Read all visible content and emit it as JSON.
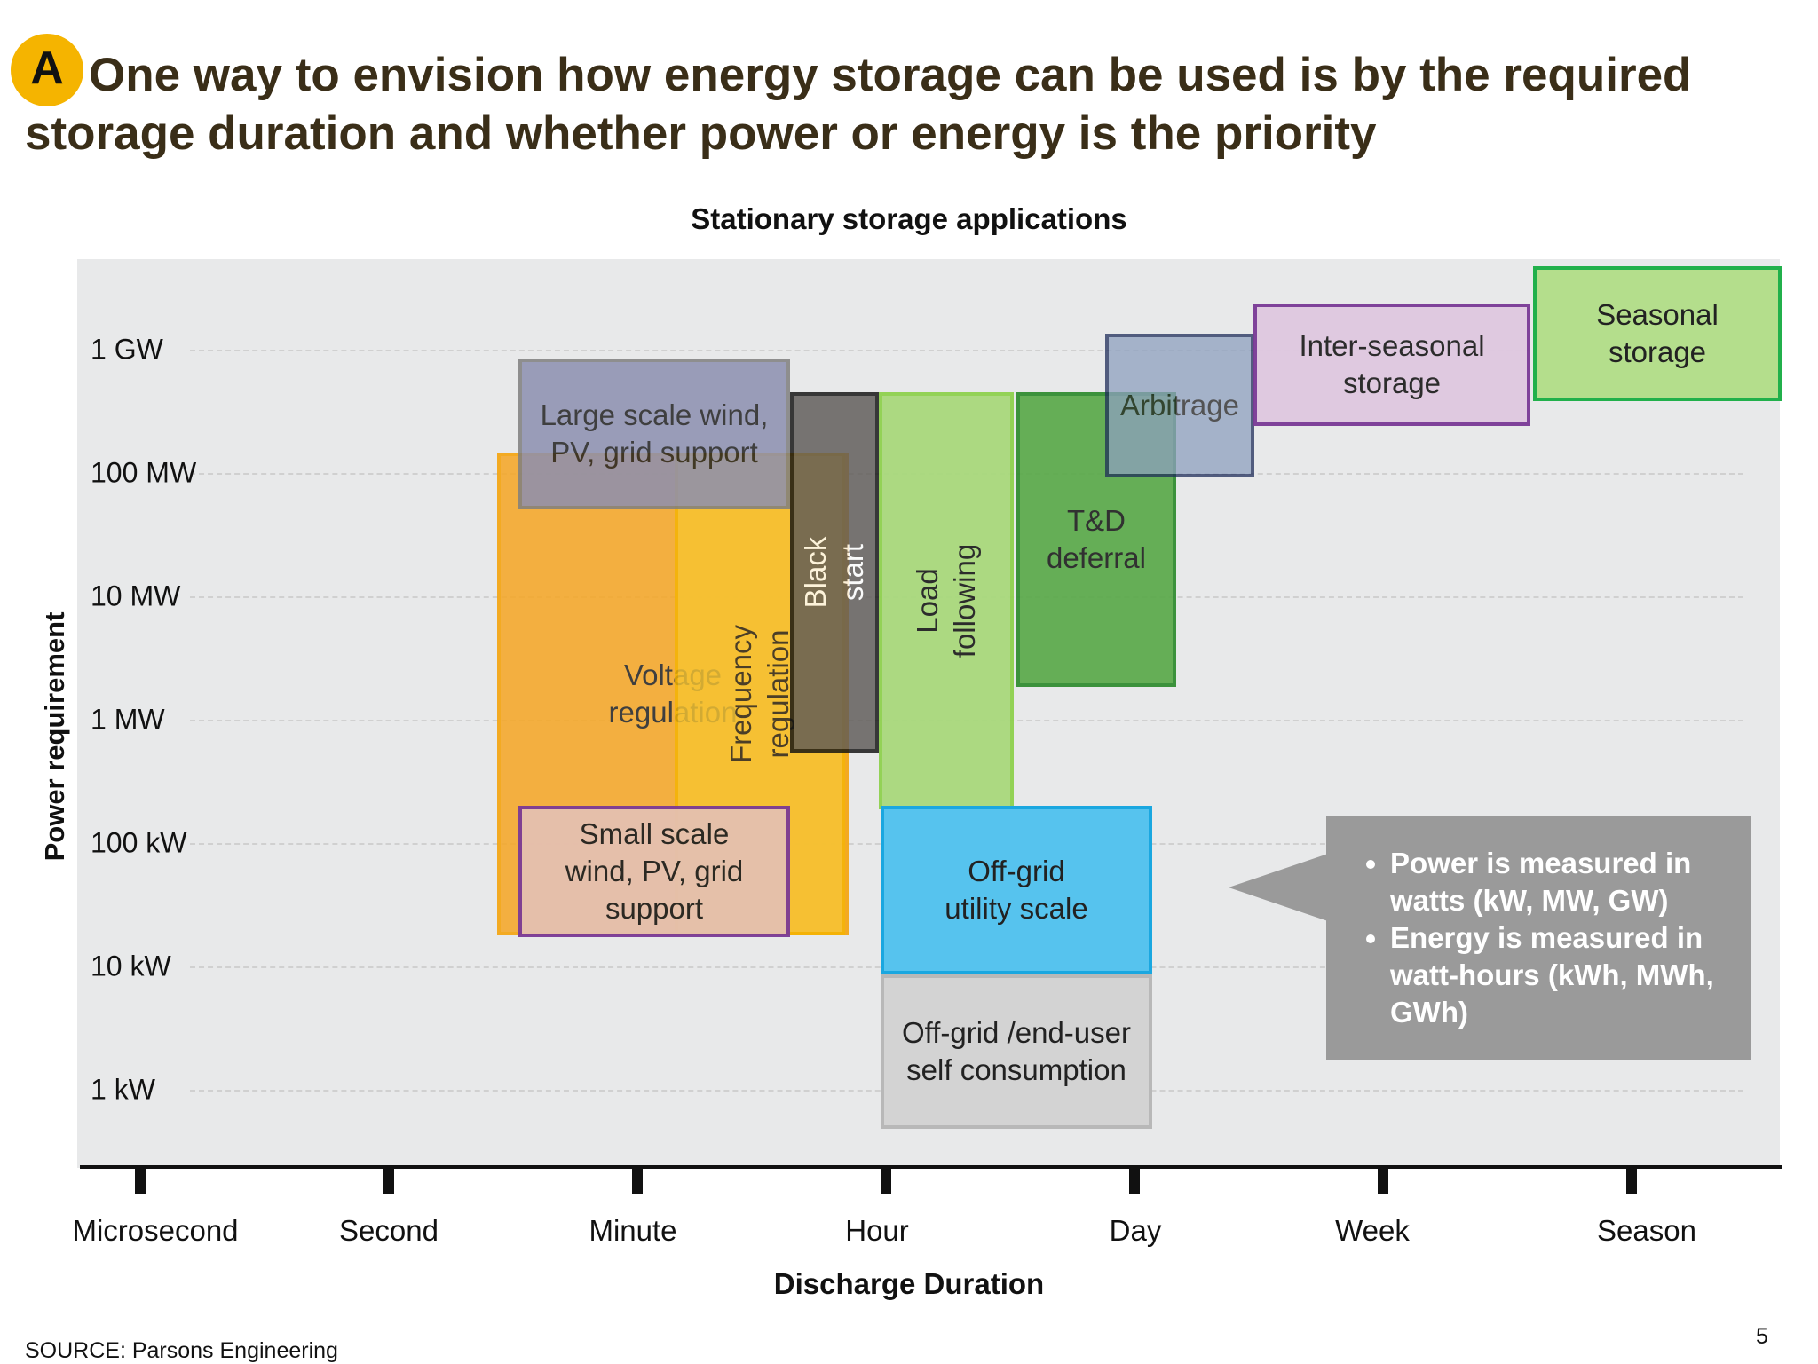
{
  "badge": "A",
  "headline": "One way to envision how energy storage can be used is by the required storage duration and whether power or energy is the priority",
  "chart_data": {
    "type": "range-boxes",
    "title": "Stationary storage applications",
    "xlabel": "Discharge Duration",
    "ylabel": "Power requirement",
    "x_categories": [
      "Microsecond",
      "Second",
      "Minute",
      "Hour",
      "Day",
      "Week",
      "Season"
    ],
    "y_ticks": [
      "1 GW",
      "100 MW",
      "10 MW",
      "1 MW",
      "100 kW",
      "10 kW",
      "1 kW"
    ],
    "y_scale": "log",
    "grid": true,
    "applications": [
      {
        "label": "Voltage\nregulation",
        "x_range": [
          "Minute-",
          "Hour-"
        ],
        "y_range": [
          "10 kW",
          "100 MW"
        ],
        "fill": "#f6a623",
        "border": "#f5a000",
        "vertical": false
      },
      {
        "label": "Frequency\nregulation",
        "x_range": [
          "Minute",
          "Hour"
        ],
        "y_range": [
          "10 kW",
          "100 MW"
        ],
        "fill": "#f7c531",
        "border": "#f5b400",
        "vertical": true
      },
      {
        "label": "Large scale wind,\nPV, grid support",
        "x_range": [
          "Minute-",
          "Hour-"
        ],
        "y_range": [
          "100 MW",
          "1 GW"
        ],
        "fill": "#8c8fb0",
        "border": "#7f7f7f",
        "vertical": false
      },
      {
        "label": "Black start",
        "x_range": [
          "Hour-",
          "Hour"
        ],
        "y_range": [
          "1 MW",
          "1 GW"
        ],
        "fill": "#5e5a57",
        "border": "#111111",
        "vertical": true,
        "label_color": "#ffffff"
      },
      {
        "label": "Load following",
        "x_range": [
          "Hour",
          "Day-"
        ],
        "y_range": [
          "100 kW",
          "1 GW"
        ],
        "fill": "#a9d97c",
        "border": "#8fd14f",
        "vertical": true
      },
      {
        "label": "T&D\ndeferral",
        "x_range": [
          "Day-",
          "Day"
        ],
        "y_range": [
          "1 MW",
          "1 GW"
        ],
        "fill": "#5aa94a",
        "border": "#2e8b2e",
        "vertical": false
      },
      {
        "label": "Arbitrage",
        "x_range": [
          "Day-",
          "Day+"
        ],
        "y_range": [
          "100 MW",
          "1 GW"
        ],
        "fill": "#8ea0bf",
        "border": "#1f2d5a",
        "vertical": false
      },
      {
        "label": "Inter-seasonal\nstorage",
        "x_range": [
          "Day+",
          "Week+"
        ],
        "y_range": [
          "1 GW",
          "1 GW+"
        ],
        "fill": "#dfc8e0",
        "border": "#7a3a96",
        "vertical": false
      },
      {
        "label": "Seasonal\nstorage",
        "x_range": [
          "Week+",
          "Season+"
        ],
        "y_range": [
          "1 GW",
          "1 GW+"
        ],
        "fill": "#b4de8c",
        "border": "#21b04b",
        "vertical": false
      },
      {
        "label": "Small scale\nwind, PV, grid\nsupport",
        "x_range": [
          "Minute-",
          "Hour-"
        ],
        "y_range": [
          "10 kW",
          "100 kW"
        ],
        "fill": "#e5c0b0",
        "border": "#7a3a96",
        "vertical": false
      },
      {
        "label": "Off-grid\nutility scale",
        "x_range": [
          "Hour",
          "Day"
        ],
        "y_range": [
          "10 kW",
          "100 kW"
        ],
        "fill": "#56c3ee",
        "border": "#1aa7e0",
        "vertical": false
      },
      {
        "label": "Off-grid /end-user\nself consumption",
        "x_range": [
          "Hour",
          "Day"
        ],
        "y_range": [
          "1 kW",
          "10 kW"
        ],
        "fill": "#d3d3d3",
        "border": "#b8b8b8",
        "vertical": false
      }
    ]
  },
  "callout": {
    "items": [
      "Power is measured in watts (kW, MW, GW)",
      "Energy is measured in watt-hours (kWh, MWh, GWh)"
    ]
  },
  "footer": {
    "source": "SOURCE: Parsons Engineering",
    "page": "5"
  }
}
